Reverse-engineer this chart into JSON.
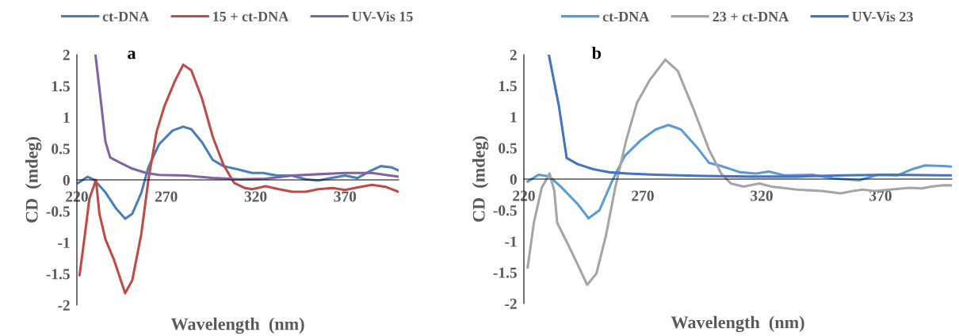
{
  "chart_data": [
    {
      "type": "line",
      "xlabel": "Wavelength  (nm)",
      "ylabel": "CD  (mdeg)",
      "annotations": [
        "a"
      ],
      "xlim": [
        220,
        400
      ],
      "xticks": [
        220,
        270,
        320,
        370
      ],
      "ylim": [
        -2,
        2
      ],
      "yticks": [
        -2,
        -1.5,
        -1,
        -0.5,
        0,
        0.5,
        1,
        1.5,
        2
      ],
      "grid": false,
      "legend": "top",
      "marker": "none",
      "line_style": "solid",
      "series": [
        {
          "name": "ct-DNA",
          "color": "#4a7ebb",
          "x": [
            220.7,
            226,
            229.7,
            236,
            242,
            247,
            251,
            256,
            260,
            266,
            273.6,
            279.5,
            284,
            290,
            296,
            302,
            311,
            318,
            324,
            332,
            340,
            348,
            355,
            362,
            370,
            377,
            384,
            390,
            396,
            400
          ],
          "values": [
            -0.05,
            0.05,
            0,
            -0.2,
            -0.46,
            -0.62,
            -0.54,
            -0.21,
            0.2,
            0.57,
            0.79,
            0.85,
            0.81,
            0.6,
            0.32,
            0.22,
            0.16,
            0.11,
            0.11,
            0.07,
            0.07,
            0.01,
            -0.01,
            0.03,
            0.07,
            0.03,
            0.14,
            0.22,
            0.2,
            0.15
          ]
        },
        {
          "name": "15 + ct-DNA",
          "color": "#be4b48",
          "x": [
            221.5,
            224.5,
            227,
            230.7,
            232.6,
            236,
            240.8,
            247,
            251,
            256,
            260,
            264.6,
            269,
            275,
            279.5,
            284,
            290,
            296,
            302,
            308,
            314,
            318,
            325.6,
            333,
            340.5,
            348,
            355,
            363,
            370,
            377,
            385,
            392.6,
            400
          ],
          "values": [
            -1.52,
            -0.87,
            -0.3,
            0,
            -0.54,
            -0.95,
            -1.28,
            -1.81,
            -1.6,
            -0.87,
            0,
            0.77,
            1.18,
            1.59,
            1.84,
            1.75,
            1.3,
            0.69,
            0.24,
            -0.05,
            -0.13,
            -0.15,
            -0.1,
            -0.15,
            -0.19,
            -0.19,
            -0.15,
            -0.13,
            -0.16,
            -0.12,
            -0.08,
            -0.11,
            -0.19
          ]
        },
        {
          "name": "UV-Vis 15",
          "color": "#7f63a2",
          "x": [
            230.4,
            233.4,
            236,
            238.6,
            243.8,
            251,
            258.7,
            266,
            281,
            296,
            311,
            325.6,
            340.5,
            355,
            370,
            385,
            400
          ],
          "values": [
            2.0,
            1.26,
            0.61,
            0.36,
            0.28,
            0.18,
            0.11,
            0.08,
            0.07,
            0.03,
            0.01,
            0.02,
            0.07,
            0.09,
            0.11,
            0.11,
            0.05
          ]
        }
      ]
    },
    {
      "type": "line",
      "xlabel": "Wavelength  (nm)",
      "ylabel": "CD  (mdeg)",
      "annotations": [
        "b"
      ],
      "xlim": [
        220,
        400
      ],
      "xticks": [
        220,
        270,
        320,
        370
      ],
      "ylim": [
        -2,
        2
      ],
      "yticks": [
        -2,
        -1.5,
        -1,
        -0.5,
        0,
        0.5,
        1,
        1.5,
        2
      ],
      "grid": false,
      "legend": "top",
      "marker": "none",
      "line_style": "solid",
      "series": [
        {
          "name": "ct-DNA",
          "color": "#5b9bd5",
          "x": [
            221.6,
            226.2,
            230.8,
            236,
            242.6,
            247.2,
            251.8,
            257,
            262.4,
            269,
            275.5,
            280.8,
            286,
            292.6,
            297.9,
            303,
            311,
            317.6,
            323,
            329.5,
            341.3,
            350.5,
            361,
            369,
            377,
            383.4,
            388.7,
            396.3,
            400
          ],
          "values": [
            -0.04,
            0.07,
            0.04,
            -0.14,
            -0.4,
            -0.63,
            -0.5,
            -0.04,
            0.37,
            0.62,
            0.8,
            0.87,
            0.8,
            0.52,
            0.26,
            0.21,
            0.11,
            0.09,
            0.12,
            0.06,
            0.07,
            0.01,
            -0.02,
            0.07,
            0.06,
            0.16,
            0.22,
            0.21,
            0.2
          ]
        },
        {
          "name": "23 + ct-DNA",
          "color": "#a5a5a5",
          "x": [
            221.6,
            224.2,
            227.5,
            230.8,
            232.8,
            234,
            238.7,
            242.6,
            246.6,
            250.5,
            254.5,
            258.4,
            263,
            267.6,
            272.9,
            279.5,
            284.7,
            291.3,
            297.9,
            303,
            307,
            312.4,
            319,
            324.2,
            334.7,
            345.3,
            353.2,
            358.4,
            362.4,
            367.6,
            374.2,
            382,
            387.4,
            391.3,
            396.3,
            400
          ],
          "values": [
            -1.42,
            -0.7,
            -0.14,
            0.09,
            -0.19,
            -0.7,
            -1.06,
            -1.37,
            -1.7,
            -1.52,
            -0.91,
            -0.14,
            0.62,
            1.23,
            1.59,
            1.92,
            1.74,
            1.13,
            0.47,
            0.09,
            -0.07,
            -0.12,
            -0.07,
            -0.12,
            -0.17,
            -0.19,
            -0.23,
            -0.19,
            -0.17,
            -0.19,
            -0.17,
            -0.14,
            -0.15,
            -0.12,
            -0.1,
            -0.1
          ]
        },
        {
          "name": "UV-Vis 23",
          "color": "#4472c4",
          "x": [
            230.5,
            234.7,
            238,
            242.6,
            249.2,
            255.8,
            263.7,
            275.5,
            295.3,
            315,
            334.7,
            354.5,
            374.2,
            396.3,
            400
          ],
          "values": [
            2.0,
            1.18,
            0.34,
            0.24,
            0.16,
            0.11,
            0.09,
            0.07,
            0.05,
            0.04,
            0.04,
            0.06,
            0.07,
            0.06,
            0.06
          ]
        }
      ]
    }
  ]
}
